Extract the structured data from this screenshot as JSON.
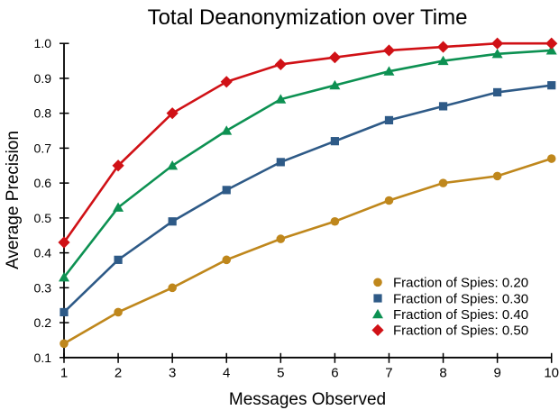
{
  "chart_data": {
    "type": "line",
    "title": "Total Deanonymization over Time",
    "xlabel": "Messages Observed",
    "ylabel": "Average Precision",
    "x": [
      1,
      2,
      3,
      4,
      5,
      6,
      7,
      8,
      9,
      10
    ],
    "xtick_labels": [
      "1",
      "2",
      "3",
      "4",
      "5",
      "6",
      "7",
      "8",
      "9",
      "10"
    ],
    "ytick_values": [
      0.1,
      0.2,
      0.3,
      0.4,
      0.5,
      0.6,
      0.7,
      0.8,
      0.9,
      1.0
    ],
    "ytick_labels": [
      "0.1",
      "0.2",
      "0.3",
      "0.4",
      "0.5",
      "0.6",
      "0.7",
      "0.8",
      "0.9",
      "1.0"
    ],
    "xlim": [
      1,
      10
    ],
    "ylim": [
      0.1,
      1.0
    ],
    "grid": false,
    "legend_position": "lower-right",
    "background_color": "#ffffff",
    "axis_color": "#000000",
    "text_color": "#000000",
    "series": [
      {
        "name": "Fraction of Spies: 0.20",
        "marker": "circle",
        "color": "#BF871C",
        "values": [
          0.14,
          0.23,
          0.3,
          0.38,
          0.44,
          0.49,
          0.55,
          0.6,
          0.62,
          0.67
        ]
      },
      {
        "name": "Fraction of Spies: 0.30",
        "marker": "square",
        "color": "#2E5A87",
        "values": [
          0.23,
          0.38,
          0.49,
          0.58,
          0.66,
          0.72,
          0.78,
          0.82,
          0.86,
          0.88
        ]
      },
      {
        "name": "Fraction of Spies: 0.40",
        "marker": "triangle",
        "color": "#0D9152",
        "values": [
          0.33,
          0.53,
          0.65,
          0.75,
          0.84,
          0.88,
          0.92,
          0.95,
          0.97,
          0.98
        ]
      },
      {
        "name": "Fraction of Spies: 0.50",
        "marker": "diamond",
        "color": "#D01116",
        "values": [
          0.43,
          0.65,
          0.8,
          0.89,
          0.94,
          0.96,
          0.98,
          0.99,
          1.0,
          1.0
        ]
      }
    ]
  }
}
